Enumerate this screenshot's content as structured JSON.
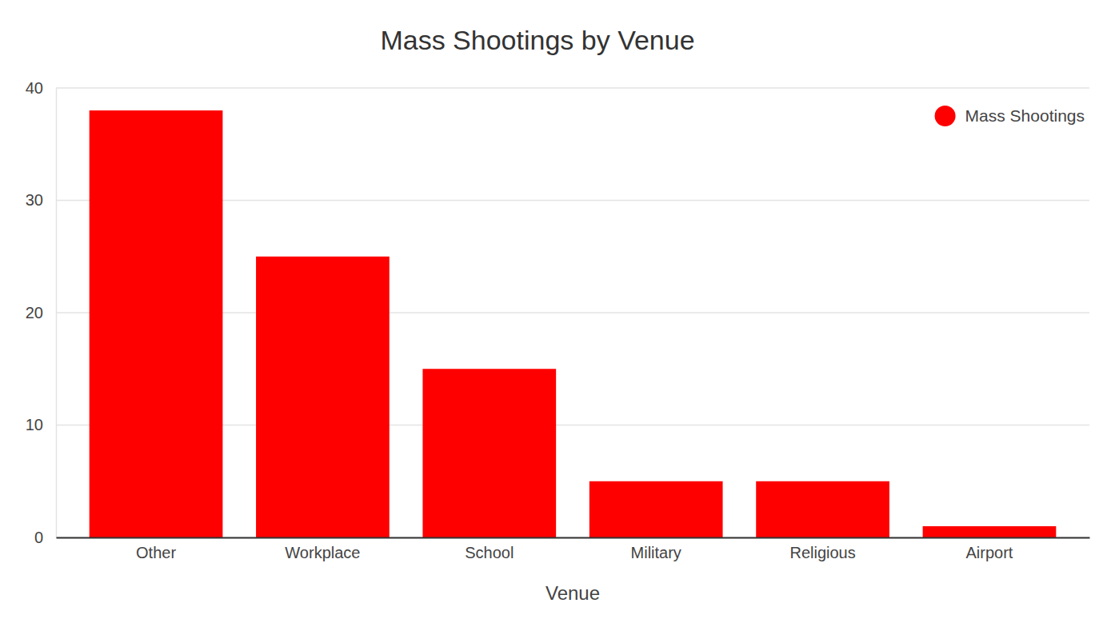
{
  "chart_data": {
    "type": "bar",
    "title": "Mass Shootings by Venue",
    "x_label": "Venue",
    "categories": [
      "Other",
      "Workplace",
      "School",
      "Military",
      "Religious",
      "Airport"
    ],
    "series": [
      {
        "name": "Mass Shootings",
        "color": "#ff0000",
        "values": [
          38,
          25,
          15,
          5,
          5,
          1
        ]
      }
    ],
    "ylim": [
      0,
      40
    ],
    "yticks": [
      0,
      10,
      20,
      30,
      40
    ],
    "grid": true,
    "legend": "top-right"
  }
}
